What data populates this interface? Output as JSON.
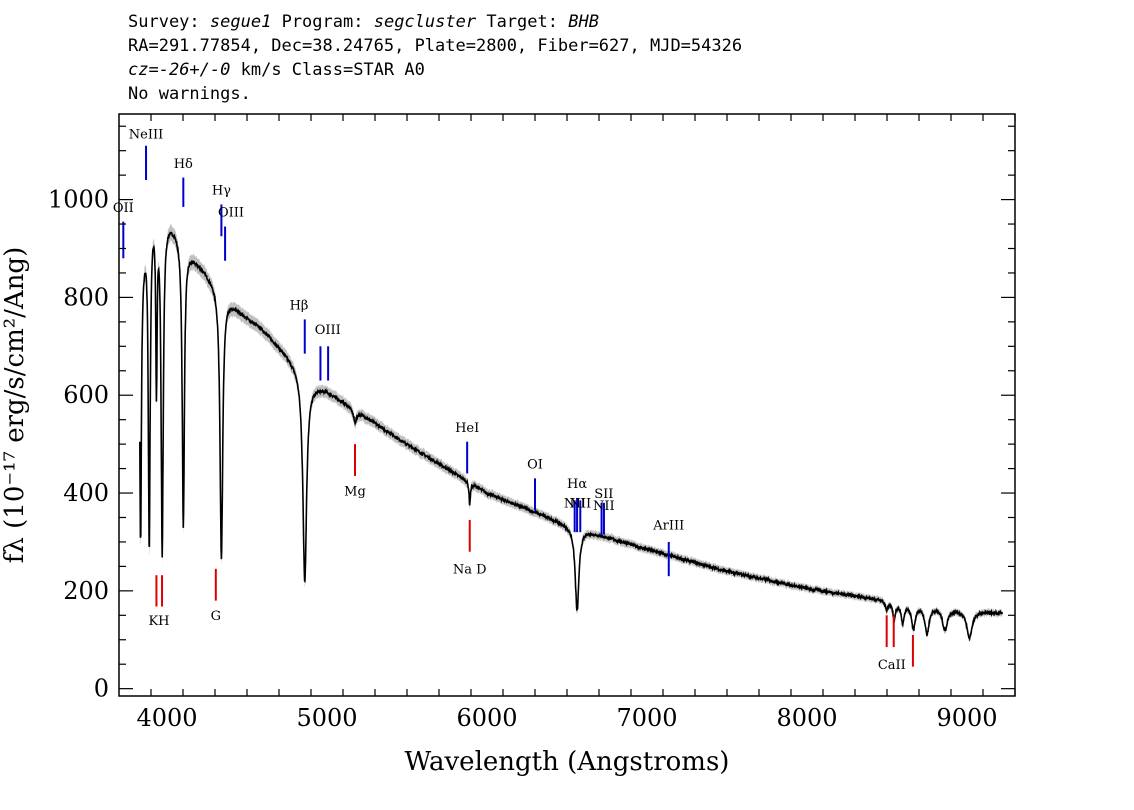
{
  "header": {
    "survey_label": "Survey:",
    "survey": "segue1",
    "program_label": "Program:",
    "program": "segcluster",
    "target_label": "Target:",
    "target": "BHB",
    "line2": "RA=291.77854, Dec=38.24765, Plate=2800, Fiber=627, MJD=54326",
    "cz_label": "cz=",
    "cz_value": "-26+/-0",
    "cz_rest": " km/s Class=STAR A0",
    "line4": "No warnings."
  },
  "chart_data": {
    "type": "line",
    "xlabel": "Wavelength (Angstroms)",
    "ylabel": "fλ (10⁻¹⁷ erg/s/cm²/Ang)",
    "xlim": [
      3700,
      9300
    ],
    "ylim": [
      -15,
      1175
    ],
    "x_ticks": [
      4000,
      5000,
      6000,
      7000,
      8000,
      9000
    ],
    "y_ticks": [
      0,
      200,
      400,
      600,
      800,
      1000
    ],
    "grid": false,
    "legend": "none",
    "colors": {
      "spectrum": "#000000",
      "error": "#b0b0b0",
      "emission": "#0000cc",
      "absorption": "#dd0000"
    },
    "continuum": [
      [
        3830,
        840
      ],
      [
        3880,
        970
      ],
      [
        3930,
        1000
      ],
      [
        3960,
        990
      ],
      [
        4000,
        965
      ],
      [
        4050,
        945
      ],
      [
        4100,
        915
      ],
      [
        4150,
        890
      ],
      [
        4200,
        870
      ],
      [
        4300,
        830
      ],
      [
        4400,
        790
      ],
      [
        4500,
        760
      ],
      [
        4600,
        735
      ],
      [
        4700,
        700
      ],
      [
        4800,
        665
      ],
      [
        4900,
        625
      ],
      [
        5000,
        610
      ],
      [
        5200,
        565
      ],
      [
        5500,
        500
      ],
      [
        5800,
        440
      ],
      [
        6000,
        400
      ],
      [
        6500,
        335
      ],
      [
        7000,
        285
      ],
      [
        7500,
        240
      ],
      [
        8000,
        205
      ],
      [
        8500,
        180
      ],
      [
        9000,
        160
      ],
      [
        9220,
        155
      ]
    ],
    "absorption_features": [
      {
        "center": 3835,
        "depth": 540,
        "width": 6
      },
      {
        "center": 3889,
        "depth": 680,
        "width": 7
      },
      {
        "center": 3934,
        "depth": 360,
        "width": 5
      },
      {
        "center": 3970,
        "depth": 700,
        "width": 8
      },
      {
        "center": 4102,
        "depth": 580,
        "width": 8
      },
      {
        "center": 4340,
        "depth": 550,
        "width": 10
      },
      {
        "center": 4861,
        "depth": 420,
        "width": 14
      },
      {
        "center": 5175,
        "depth": 25,
        "width": 12
      },
      {
        "center": 5892,
        "depth": 45,
        "width": 5
      },
      {
        "center": 6563,
        "depth": 170,
        "width": 14
      },
      {
        "center": 8498,
        "depth": 20,
        "width": 8
      },
      {
        "center": 8545,
        "depth": 35,
        "width": 10
      },
      {
        "center": 8598,
        "depth": 40,
        "width": 12
      },
      {
        "center": 8665,
        "depth": 50,
        "width": 14
      },
      {
        "center": 8750,
        "depth": 55,
        "width": 16
      },
      {
        "center": 8862,
        "depth": 45,
        "width": 18
      },
      {
        "center": 9015,
        "depth": 55,
        "width": 20
      }
    ],
    "emission_lines": [
      {
        "name": "OII",
        "label_x": 3727,
        "label_y": 975,
        "x": 3727,
        "y1": 880,
        "y2": 955
      },
      {
        "name": "NeIII",
        "label_x": 3869,
        "label_y": 1125,
        "x": 3869,
        "y1": 1040,
        "y2": 1110
      },
      {
        "name": "Hδ",
        "label_x": 4102,
        "label_y": 1065,
        "x": 4102,
        "y1": 985,
        "y2": 1045
      },
      {
        "name": "Hγ",
        "label_x": 4340,
        "label_y": 1010,
        "x": 4340,
        "y1": 925,
        "y2": 990
      },
      {
        "name": "OIII",
        "label_x": 4400,
        "label_y": 965,
        "x": 4363,
        "y1": 875,
        "y2": 945
      },
      {
        "name": "Hβ",
        "label_x": 4825,
        "label_y": 775,
        "x": 4861,
        "y1": 685,
        "y2": 755
      },
      {
        "name": "OIII",
        "label_x": 5005,
        "label_y": 725,
        "x": 4959,
        "y1": 630,
        "y2": 700
      },
      {
        "name": "",
        "label_x": 0,
        "label_y": 0,
        "x": 5007,
        "y1": 630,
        "y2": 700
      },
      {
        "name": "HeI",
        "label_x": 5876,
        "label_y": 525,
        "x": 5876,
        "y1": 440,
        "y2": 505
      },
      {
        "name": "OI",
        "label_x": 6300,
        "label_y": 450,
        "x": 6300,
        "y1": 365,
        "y2": 430
      },
      {
        "name": "NII",
        "label_x": 6548,
        "label_y": 370,
        "x": 6548,
        "y1": 320,
        "y2": 385
      },
      {
        "name": "Hα",
        "label_x": 6563,
        "label_y": 410,
        "x": 6563,
        "y1": 320,
        "y2": 390
      },
      {
        "name": "NII",
        "label_x": 6583,
        "label_y": 370,
        "x": 6583,
        "y1": 320,
        "y2": 385
      },
      {
        "name": "SII",
        "label_x": 6730,
        "label_y": 390,
        "x": 6716,
        "y1": 315,
        "y2": 380
      },
      {
        "name": "",
        "label_x": 0,
        "label_y": 0,
        "x": 6731,
        "y1": 315,
        "y2": 380
      },
      {
        "name": "NII",
        "label_x": 6730,
        "label_y": 365,
        "x": 0,
        "y1": 0,
        "y2": 0
      },
      {
        "name": "ArIII",
        "label_x": 7136,
        "label_y": 325,
        "x": 7136,
        "y1": 230,
        "y2": 300
      }
    ],
    "absorption_lines": [
      {
        "name": "Mg",
        "label_x": 5175,
        "label_y": 395,
        "x": 5175,
        "y1": 435,
        "y2": 500
      },
      {
        "name": "Na D",
        "label_x": 5892,
        "label_y": 235,
        "x": 5892,
        "y1": 280,
        "y2": 345
      },
      {
        "name": "KH",
        "label_x": 3950,
        "label_y": 130,
        "x": 3934,
        "y1": 168,
        "y2": 232
      },
      {
        "name": "",
        "label_x": 0,
        "label_y": 0,
        "x": 3969,
        "y1": 168,
        "y2": 232
      },
      {
        "name": "G",
        "label_x": 4305,
        "label_y": 140,
        "x": 4305,
        "y1": 180,
        "y2": 245
      },
      {
        "name": "CaII",
        "label_x": 8530,
        "label_y": 40,
        "x": 8498,
        "y1": 85,
        "y2": 150
      },
      {
        "name": "",
        "label_x": 0,
        "label_y": 0,
        "x": 8542,
        "y1": 85,
        "y2": 150
      },
      {
        "name": "",
        "label_x": 0,
        "label_y": 0,
        "x": 8662,
        "y1": 45,
        "y2": 110
      }
    ]
  }
}
